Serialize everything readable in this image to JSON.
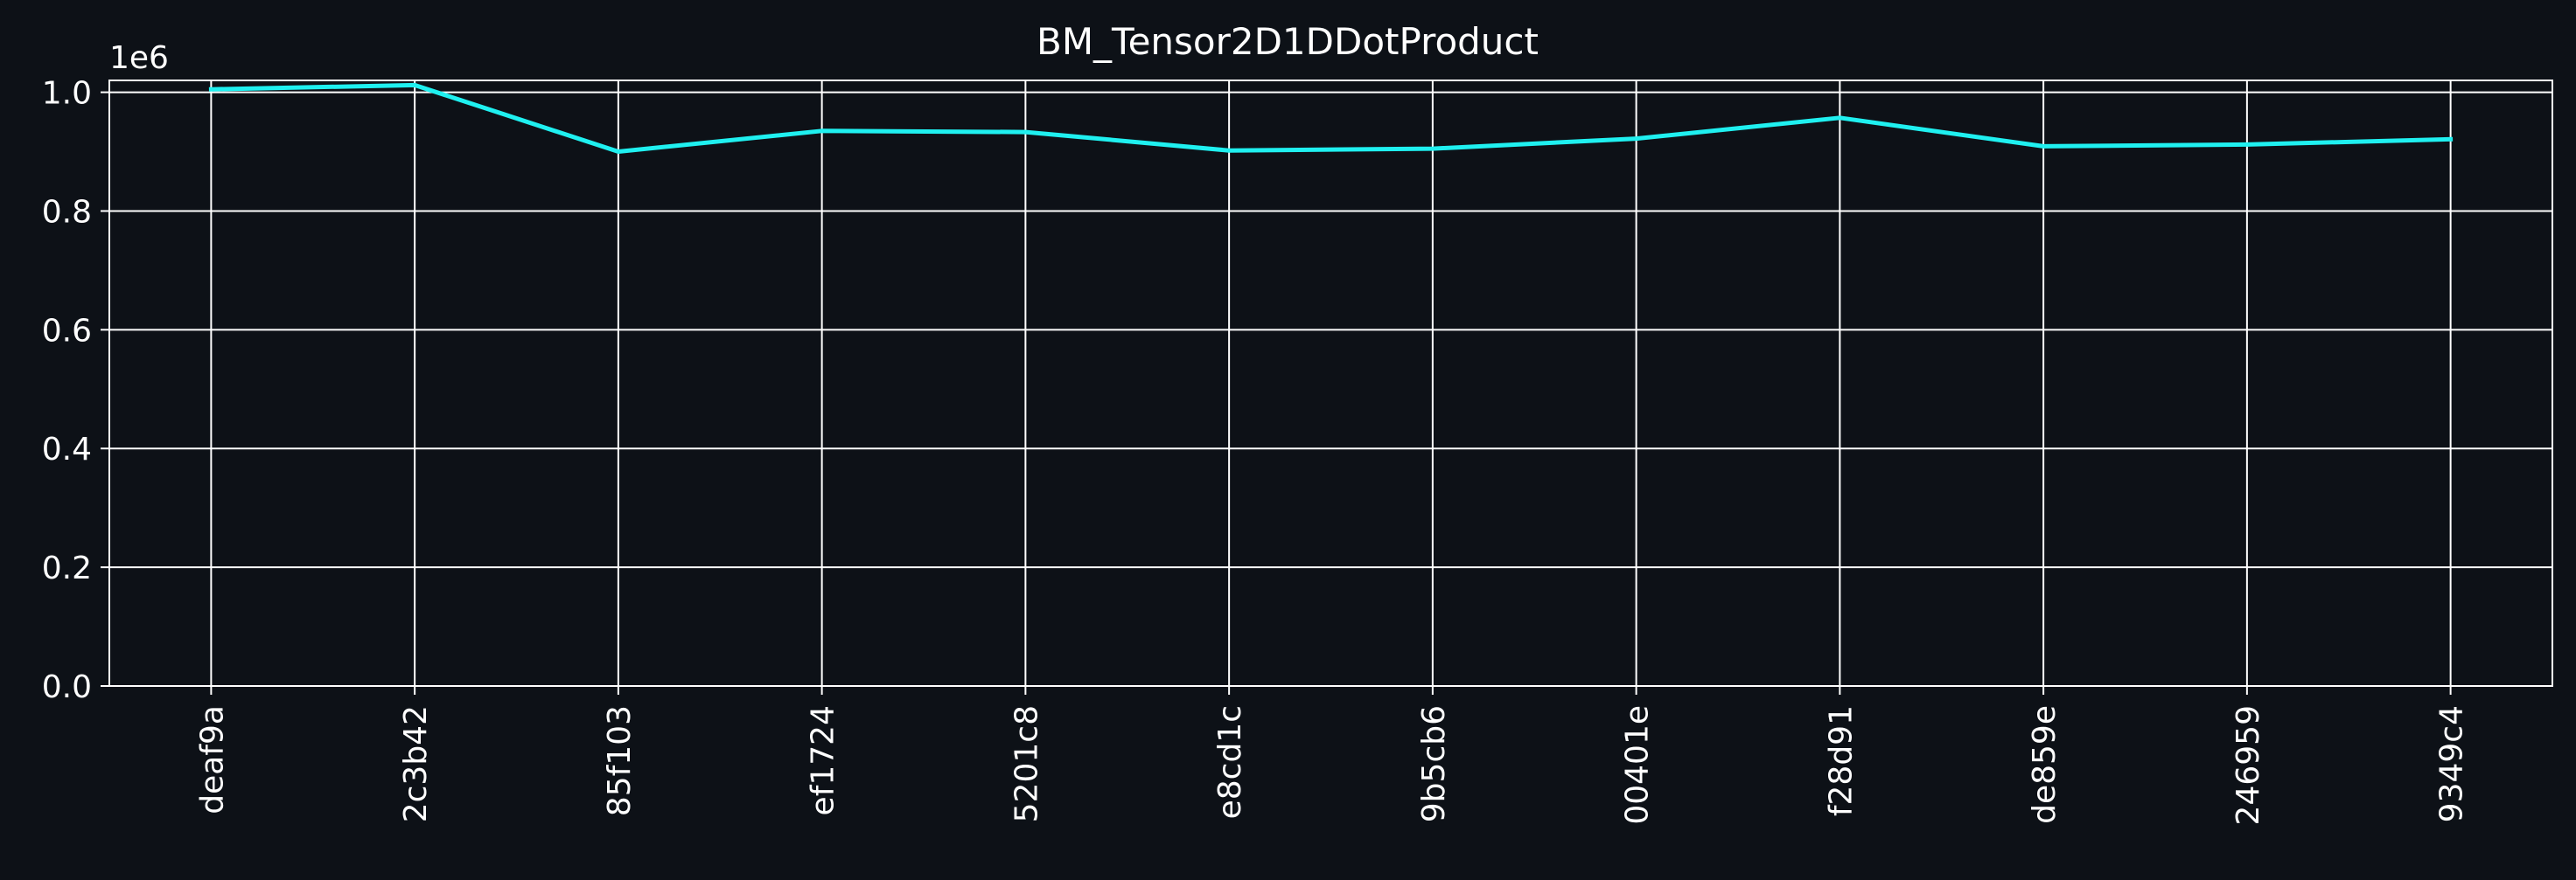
{
  "chart_data": {
    "type": "line",
    "title": "BM_Tensor2D1DDotProduct",
    "xlabel": "",
    "ylabel": "",
    "y_offset_label": "1e6",
    "categories": [
      "deaf9a",
      "2c3b42",
      "85f103",
      "ef1724",
      "5201c8",
      "e8cd1c",
      "9b5cb6",
      "00401e",
      "f28d91",
      "de859e",
      "246959",
      "9349c4"
    ],
    "series": [
      {
        "values": [
          1005000,
          1012000,
          900000,
          935000,
          933000,
          902000,
          905000,
          922000,
          957000,
          909000,
          912000,
          921000
        ],
        "color": "#1ff0f0"
      }
    ],
    "ylim": [
      0,
      1020000
    ],
    "yticks": [
      0,
      200000,
      400000,
      600000,
      800000,
      1000000
    ],
    "ytick_labels": [
      "0.0",
      "0.2",
      "0.4",
      "0.6",
      "0.8",
      "1.0"
    ],
    "grid": true,
    "legend": "none",
    "colors": {
      "background": "#0d1117",
      "grid": "#ffffff",
      "text": "#ffffff",
      "axes": "#ffffff"
    }
  }
}
